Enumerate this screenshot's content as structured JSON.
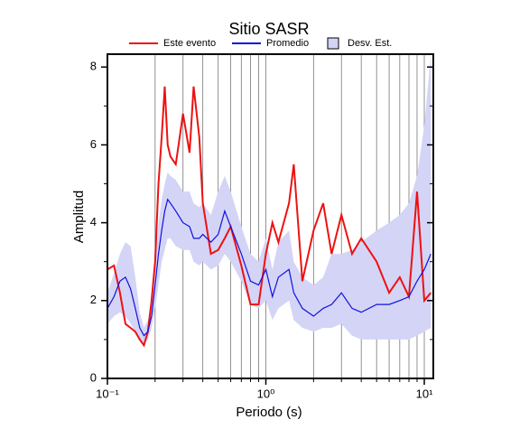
{
  "chart_data": {
    "type": "line",
    "title": "Sitio SASR",
    "xlabel": "Periodo (s)",
    "ylabel": "Amplitud",
    "xscale": "log",
    "grid": true,
    "legend": "top",
    "xlim": [
      0.1,
      11.4
    ],
    "ylim": [
      0,
      8.33
    ],
    "xticks": [
      {
        "value": 0.1,
        "label": "10⁻¹"
      },
      {
        "value": 1,
        "label": "10⁰"
      },
      {
        "value": 10,
        "label": "10¹"
      }
    ],
    "xminor": [
      0.2,
      0.3,
      0.4,
      0.5,
      0.6,
      0.7,
      0.8,
      0.9,
      2,
      3,
      4,
      5,
      6,
      7,
      8,
      9
    ],
    "yticks": [
      0,
      2,
      4,
      6,
      8
    ],
    "yminor": [
      1,
      3,
      5,
      7
    ],
    "x": [
      0.1,
      0.11,
      0.12,
      0.13,
      0.14,
      0.15,
      0.16,
      0.17,
      0.18,
      0.19,
      0.2,
      0.21,
      0.22,
      0.23,
      0.24,
      0.25,
      0.27,
      0.3,
      0.33,
      0.35,
      0.38,
      0.4,
      0.45,
      0.5,
      0.55,
      0.6,
      0.7,
      0.8,
      0.9,
      1.0,
      1.1,
      1.2,
      1.4,
      1.5,
      1.7,
      2.0,
      2.3,
      2.6,
      3.0,
      3.5,
      4.0,
      5.0,
      6.0,
      7.0,
      8.0,
      9.0,
      10.0,
      11.0
    ],
    "series": [
      {
        "name": "Este evento",
        "color": "#ee1111",
        "values": [
          2.8,
          2.9,
          2.2,
          1.4,
          1.3,
          1.2,
          1.0,
          0.85,
          1.2,
          2.0,
          3.0,
          5.0,
          6.2,
          7.5,
          6.0,
          5.7,
          5.5,
          6.8,
          5.8,
          7.5,
          6.2,
          4.5,
          3.2,
          3.3,
          3.6,
          3.9,
          2.9,
          1.9,
          1.9,
          3.2,
          4.0,
          3.5,
          4.5,
          5.5,
          2.5,
          3.8,
          4.5,
          3.2,
          4.2,
          3.2,
          3.6,
          3.0,
          2.2,
          2.6,
          2.1,
          4.8,
          2.0,
          2.2
        ]
      },
      {
        "name": "Promedio",
        "color": "#1111dd",
        "values": [
          1.8,
          2.1,
          2.5,
          2.6,
          2.3,
          1.8,
          1.3,
          1.1,
          1.2,
          1.6,
          2.4,
          3.2,
          3.8,
          4.3,
          4.6,
          4.5,
          4.3,
          4.0,
          3.9,
          3.6,
          3.6,
          3.7,
          3.5,
          3.7,
          4.3,
          3.9,
          3.2,
          2.5,
          2.4,
          2.8,
          2.1,
          2.6,
          2.8,
          2.2,
          1.8,
          1.6,
          1.8,
          1.9,
          2.2,
          1.8,
          1.7,
          1.9,
          1.9,
          2.0,
          2.1,
          2.5,
          2.8,
          3.2
        ]
      },
      {
        "name": "Desv. Est.",
        "color": "#d4d4f7",
        "lower": [
          1.4,
          1.6,
          1.7,
          1.6,
          1.4,
          1.2,
          1.0,
          0.9,
          1.0,
          1.3,
          1.8,
          2.4,
          3.0,
          3.3,
          3.6,
          3.6,
          3.4,
          3.3,
          3.3,
          3.0,
          2.9,
          3.0,
          2.8,
          2.9,
          3.2,
          3.0,
          2.5,
          1.9,
          1.8,
          2.0,
          1.5,
          1.8,
          2.0,
          1.5,
          1.3,
          1.2,
          1.3,
          1.3,
          1.4,
          1.1,
          1.0,
          1.0,
          1.0,
          1.0,
          1.0,
          1.1,
          1.2,
          1.3
        ],
        "upper": [
          2.2,
          2.7,
          3.2,
          3.5,
          3.4,
          2.6,
          1.7,
          1.3,
          1.5,
          2.0,
          3.0,
          4.0,
          4.6,
          5.0,
          5.3,
          5.2,
          5.1,
          4.8,
          4.8,
          4.5,
          4.4,
          4.5,
          4.2,
          4.8,
          5.2,
          4.8,
          3.9,
          3.2,
          3.0,
          3.6,
          2.8,
          3.5,
          3.8,
          3.0,
          2.6,
          2.4,
          2.6,
          3.2,
          3.2,
          3.3,
          3.5,
          3.8,
          4.0,
          4.2,
          4.5,
          5.2,
          6.5,
          8.3
        ]
      }
    ]
  }
}
